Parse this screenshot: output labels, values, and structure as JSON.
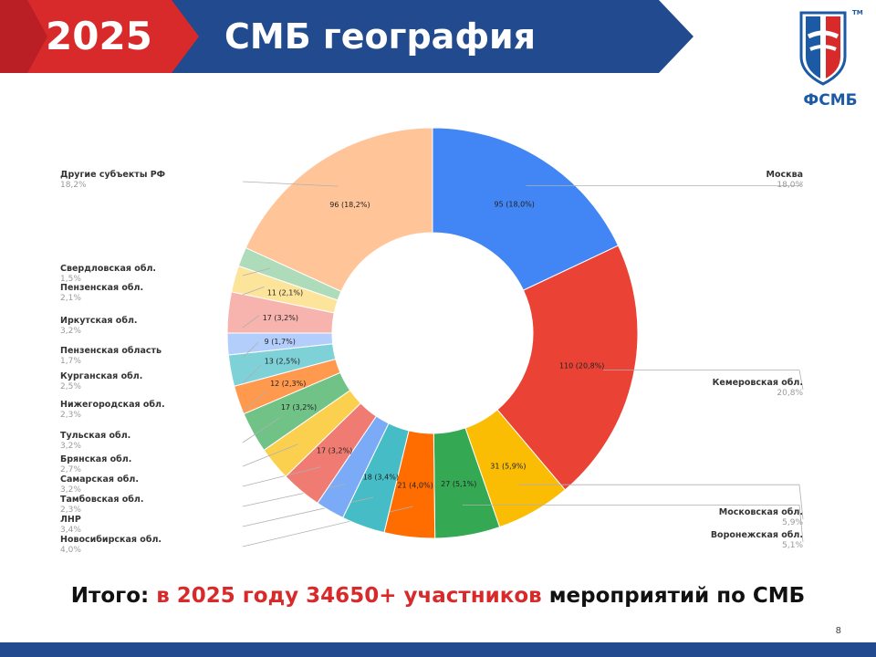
{
  "header": {
    "year": "2025",
    "title": "СМБ география"
  },
  "logo": {
    "text": "ФСМБ",
    "tm": "TM"
  },
  "colors": {
    "header_blue": "#214a8f",
    "header_red": "#d82a2a",
    "highlight": "#d82a2a"
  },
  "chart_data": {
    "type": "pie",
    "donut": true,
    "legend": "side-callouts",
    "slices": [
      {
        "label": "Москва",
        "pct": "18,0%",
        "value": 95,
        "inner": "95 (18,0%)",
        "color": "#4285f4"
      },
      {
        "label": "Кемеровская обл.",
        "pct": "20,8%",
        "value": 110,
        "inner": "110 (20,8%)",
        "color": "#ea4335"
      },
      {
        "label": "Московская обл.",
        "pct": "5,9%",
        "value": 31,
        "inner": "31 (5,9%)",
        "color": "#fbbc04"
      },
      {
        "label": "Воронежская обл.",
        "pct": "5,1%",
        "value": 27,
        "inner": "27 (5,1%)",
        "color": "#34a853"
      },
      {
        "label": "Новосибирская обл.",
        "pct": "4,0%",
        "value": 21,
        "inner": "21 (4,0%)",
        "color": "#ff6d01"
      },
      {
        "label": "ЛНР",
        "pct": "3,4%",
        "value": 18,
        "inner": "18 (3,4%)",
        "color": "#46bdc6"
      },
      {
        "label": "Тамбовская обл.",
        "pct": "2,3%",
        "value": 12,
        "inner": "",
        "color": "#7baaf7"
      },
      {
        "label": "Самарская обл.",
        "pct": "3,2%",
        "value": 17,
        "inner": "17 (3,2%)",
        "color": "#f07b72"
      },
      {
        "label": "Брянская обл.",
        "pct": "2,7%",
        "value": 14,
        "inner": "",
        "color": "#fcd04f"
      },
      {
        "label": "Тульская обл.",
        "pct": "3,2%",
        "value": 17,
        "inner": "17 (3,2%)",
        "color": "#71c287"
      },
      {
        "label": "Нижегородская обл.",
        "pct": "2,3%",
        "value": 12,
        "inner": "12 (2,3%)",
        "color": "#ff994d"
      },
      {
        "label": "Курганская обл.",
        "pct": "2,5%",
        "value": 13,
        "inner": "13 (2,5%)",
        "color": "#7ed1d7"
      },
      {
        "label": "Пензенская область",
        "pct": "1,7%",
        "value": 9,
        "inner": "9 (1,7%)",
        "color": "#b3cefb"
      },
      {
        "label": "Иркутская обл.",
        "pct": "3,2%",
        "value": 17,
        "inner": "17 (3,2%)",
        "color": "#f7b4ae"
      },
      {
        "label": "Пензенская обл.",
        "pct": "2,1%",
        "value": 11,
        "inner": "11 (2,1%)",
        "color": "#fde49b"
      },
      {
        "label": "Свердловская обл.",
        "pct": "1,5%",
        "value": 8,
        "inner": "",
        "color": "#aedcba"
      },
      {
        "label": "Другие субъекты РФ",
        "pct": "18,2%",
        "value": 96,
        "inner": "96 (18,2%)",
        "color": "#ffc599"
      }
    ]
  },
  "footer": {
    "prefix": "Итого: ",
    "highlight": "в 2025 году 34650+ участников",
    "suffix": " мероприятий по СМБ"
  },
  "page_number": "8"
}
